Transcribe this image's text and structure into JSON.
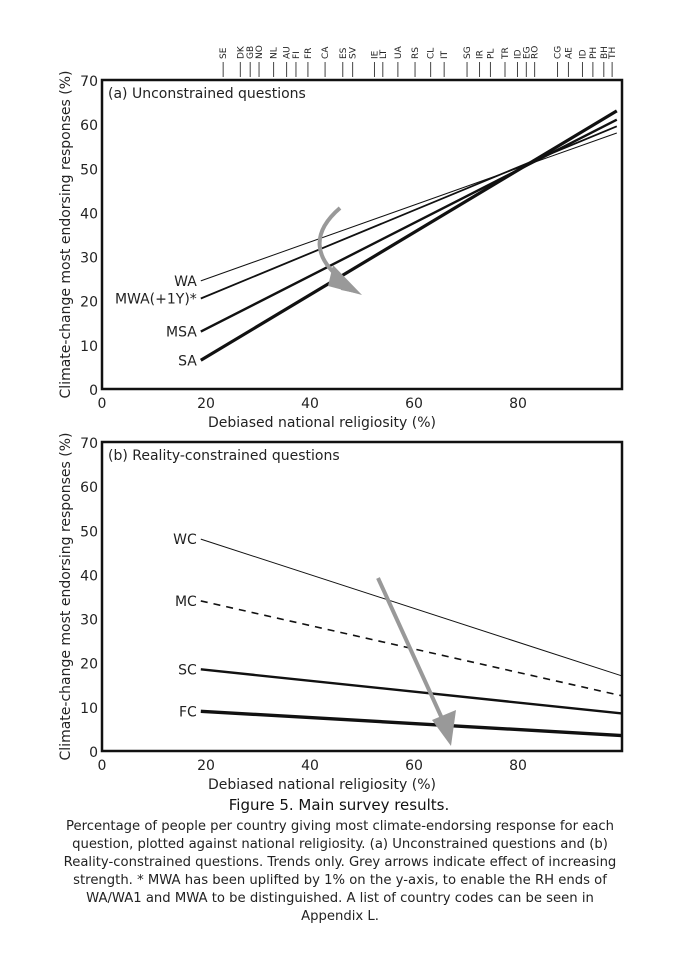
{
  "figure_title": "Figure 5. Main survey results.",
  "caption": "Percentage of people per country giving most climate-endorsing response for each question, plotted against national religiosity. (a) Unconstrained questions and (b) Reality-constrained questions. Trends only. Grey arrows indicate effect of increasing strength. * MWA has been uplifted by 1% on the y-axis, to enable the RH ends of WA/WA1 and MWA to be distinguished. A list of country codes can be seen in Appendix L.",
  "country_codes": [
    {
      "code": "SE",
      "x": 23.3
    },
    {
      "code": "DK",
      "x": 26.6
    },
    {
      "code": "GB",
      "x": 28.5
    },
    {
      "code": "NO",
      "x": 30.2
    },
    {
      "code": "NL",
      "x": 33.0
    },
    {
      "code": "AU",
      "x": 35.5
    },
    {
      "code": "FI",
      "x": 37.3
    },
    {
      "code": "FR",
      "x": 39.6
    },
    {
      "code": "CA",
      "x": 42.9
    },
    {
      "code": "ES",
      "x": 46.3
    },
    {
      "code": "SV",
      "x": 48.2
    },
    {
      "code": "IE",
      "x": 52.4
    },
    {
      "code": "LT",
      "x": 54.0
    },
    {
      "code": "UA",
      "x": 56.9
    },
    {
      "code": "RS",
      "x": 60.2
    },
    {
      "code": "CL",
      "x": 63.2
    },
    {
      "code": "IT",
      "x": 65.8
    },
    {
      "code": "SG",
      "x": 70.2
    },
    {
      "code": "IR",
      "x": 72.6
    },
    {
      "code": "PL",
      "x": 74.7
    },
    {
      "code": "TR",
      "x": 77.5
    },
    {
      "code": "ID",
      "x": 79.9
    },
    {
      "code": "EG",
      "x": 81.6
    },
    {
      "code": "RO",
      "x": 83.2
    },
    {
      "code": "CG",
      "x": 87.6
    },
    {
      "code": "AE",
      "x": 89.7
    },
    {
      "code": "ID",
      "x": 92.4
    },
    {
      "code": "PH",
      "x": 94.4
    },
    {
      "code": "BH",
      "x": 96.5
    },
    {
      "code": "TH",
      "x": 98.1
    }
  ],
  "chart_data": [
    {
      "type": "line",
      "title": "(a) Unconstrained questions",
      "xlabel": "Debiased national religiosity (%)",
      "ylabel": "Climate-change most endorsing responses (%)",
      "xlim": [
        0,
        100
      ],
      "ylim": [
        0,
        70
      ],
      "xticks": [
        0,
        20,
        40,
        60,
        80
      ],
      "yticks": [
        0,
        10,
        20,
        30,
        40,
        50,
        60,
        70
      ],
      "series": [
        {
          "name": "WA",
          "x": [
            19,
            99
          ],
          "y": [
            24.5,
            58
          ],
          "weight": 1,
          "dash": false
        },
        {
          "name": "MWA(+1Y)*",
          "x": [
            19,
            99
          ],
          "y": [
            20.5,
            59.5
          ],
          "weight": 1.8,
          "dash": false
        },
        {
          "name": "MSA",
          "x": [
            19,
            99
          ],
          "y": [
            13,
            61
          ],
          "weight": 2.4,
          "dash": false
        },
        {
          "name": "SA",
          "x": [
            19,
            99
          ],
          "y": [
            6.5,
            63
          ],
          "weight": 3.2,
          "dash": false
        }
      ]
    },
    {
      "type": "line",
      "title": "(b) Reality-constrained questions",
      "xlabel": "Debiased national religiosity (%)",
      "ylabel": "Climate-change most endorsing responses (%)",
      "xlim": [
        0,
        100
      ],
      "ylim": [
        0,
        70
      ],
      "xticks": [
        0,
        20,
        40,
        60,
        80
      ],
      "yticks": [
        0,
        10,
        20,
        30,
        40,
        50,
        60,
        70
      ],
      "series": [
        {
          "name": "WC",
          "x": [
            19,
            100
          ],
          "y": [
            48,
            17
          ],
          "weight": 1,
          "dash": false
        },
        {
          "name": "MC",
          "x": [
            19,
            100
          ],
          "y": [
            34,
            12.5
          ],
          "weight": 1.6,
          "dash": true
        },
        {
          "name": "SC",
          "x": [
            19,
            100
          ],
          "y": [
            18.5,
            8.5
          ],
          "weight": 2.4,
          "dash": false
        },
        {
          "name": "FC",
          "x": [
            19,
            100
          ],
          "y": [
            9,
            3.5
          ],
          "weight": 3.4,
          "dash": false
        }
      ]
    }
  ]
}
